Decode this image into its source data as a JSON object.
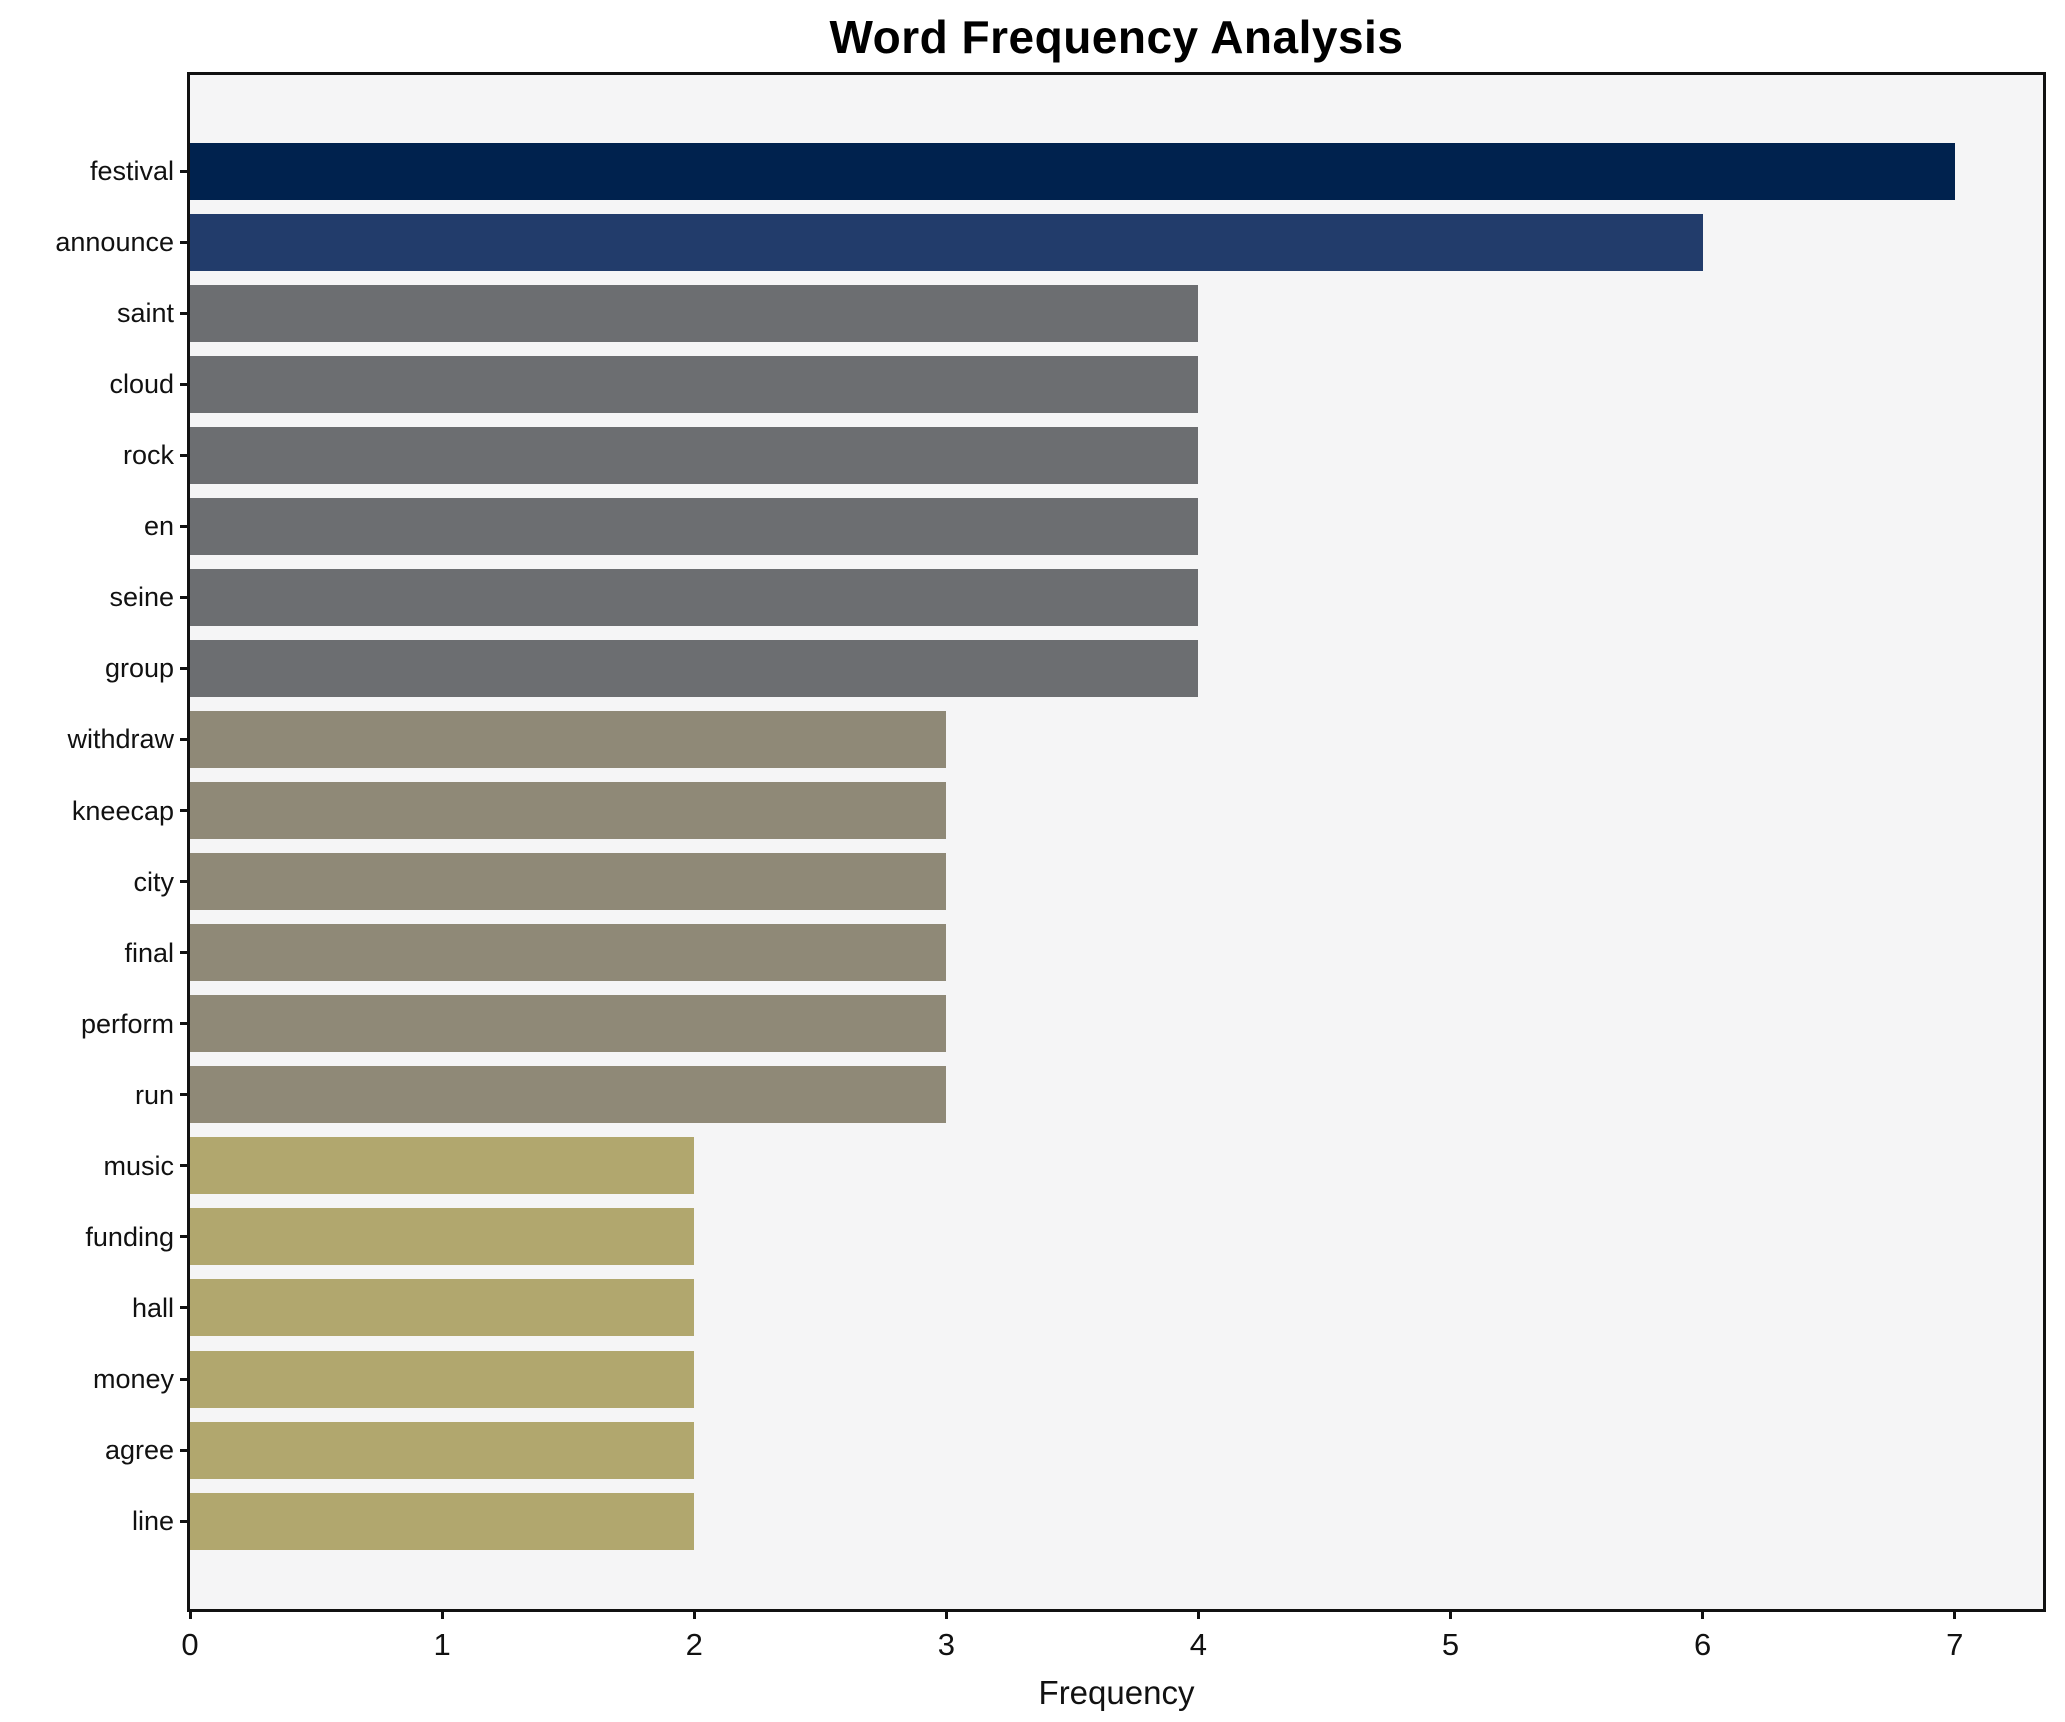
{
  "chart_data": {
    "type": "bar",
    "orientation": "horizontal",
    "title": "Word Frequency Analysis",
    "xlabel": "Frequency",
    "ylabel": "",
    "categories": [
      "festival",
      "announce",
      "saint",
      "cloud",
      "rock",
      "en",
      "seine",
      "group",
      "withdraw",
      "kneecap",
      "city",
      "final",
      "perform",
      "run",
      "music",
      "funding",
      "hall",
      "money",
      "agree",
      "line"
    ],
    "values": [
      7,
      6,
      4,
      4,
      4,
      4,
      4,
      4,
      3,
      3,
      3,
      3,
      3,
      3,
      2,
      2,
      2,
      2,
      2,
      2
    ],
    "bar_colors": [
      "#00224e",
      "#223c6b",
      "#6c6e71",
      "#6c6e71",
      "#6c6e71",
      "#6c6e71",
      "#6c6e71",
      "#6c6e71",
      "#8f8977",
      "#8f8977",
      "#8f8977",
      "#8f8977",
      "#8f8977",
      "#8f8977",
      "#b1a76e",
      "#b1a76e",
      "#b1a76e",
      "#b1a76e",
      "#b1a76e",
      "#b1a76e"
    ],
    "xticks": [
      0,
      1,
      2,
      3,
      4,
      5,
      6,
      7
    ],
    "xlim": [
      0,
      7.35
    ],
    "grid": false,
    "legend": null,
    "plot_background": "#f5f5f6",
    "figure_background": "#ffffff"
  }
}
